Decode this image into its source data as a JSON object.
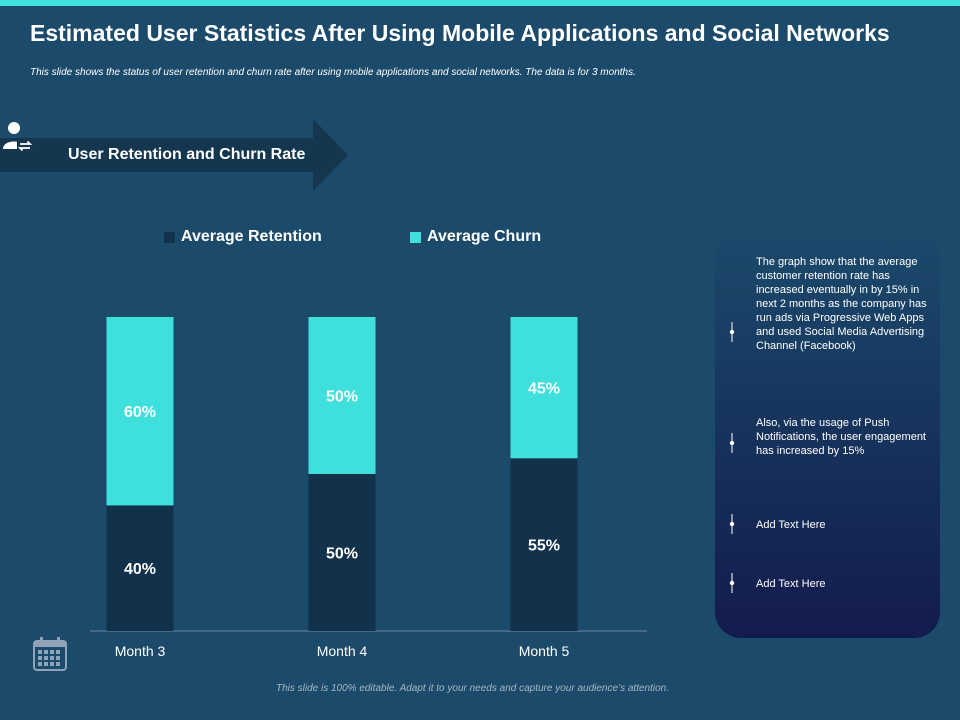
{
  "header": {
    "title": "Estimated User Statistics After Using Mobile Applications and Social Networks",
    "subtitle": "This slide shows the status of user retention and churn rate after using mobile applications and social networks. The data is for 3 months."
  },
  "banner": {
    "label": "User Retention and Churn Rate",
    "icon": "user-refresh-icon"
  },
  "colors": {
    "accent": "#3fe0dc",
    "background": "#1b4a6b",
    "retention": "#11324a",
    "churn": "#3fe0dc"
  },
  "chart_data": {
    "type": "bar",
    "stacked": true,
    "categories": [
      "Month 3",
      "Month 4",
      "Month 5"
    ],
    "series": [
      {
        "name": "Average Retention",
        "values": [
          40,
          50,
          55
        ],
        "labels": [
          "40%",
          "50%",
          "55%"
        ]
      },
      {
        "name": "Average Churn",
        "values": [
          60,
          50,
          45
        ],
        "labels": [
          "60%",
          "50%",
          "45%"
        ]
      }
    ],
    "ylim": [
      0,
      100
    ],
    "legend": "top",
    "grid": false,
    "title": "",
    "xlabel": "",
    "ylabel": ""
  },
  "notes": [
    {
      "text": "The graph show that the average customer retention rate has increased eventually in by 15% in next 2 months as the company has run ads via Progressive Web Apps and used Social Media Advertising Channel (Facebook)"
    },
    {
      "text": "Also, via the usage of Push Notifications, the user engagement has increased by 15%"
    },
    {
      "text": "Add Text Here"
    },
    {
      "text": "Add Text Here"
    }
  ],
  "footer": {
    "text": "This slide is 100% editable. Adapt it to your needs and capture your audience’s attention."
  }
}
